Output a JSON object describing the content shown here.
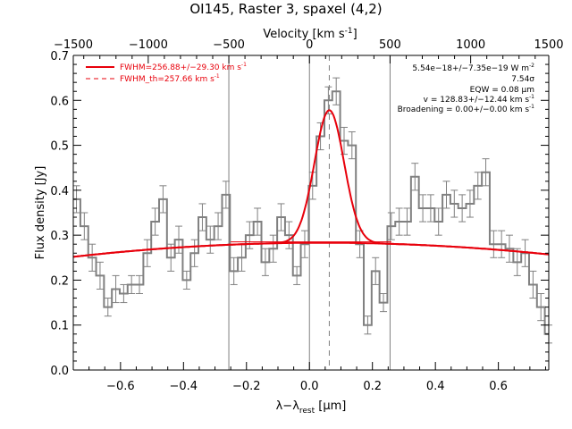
{
  "chart_data": {
    "type": "line",
    "title": "OI145, Raster 3, spaxel (4,2)",
    "xlabel": "λ−λ",
    "xlabel_sub": "rest",
    "xlabel_units": " [μm]",
    "ylabel": "Flux density [Jy]",
    "top_axis_label": "Velocity [km s",
    "top_axis_sup": "-1",
    "top_axis_close": "]",
    "xlim": [
      -0.75,
      0.76
    ],
    "ylim": [
      0.0,
      0.7
    ],
    "x_ticks": [
      -0.6,
      -0.4,
      -0.2,
      0.0,
      0.2,
      0.4,
      0.6
    ],
    "x_tick_labels": [
      "−0.6",
      "−0.4",
      "−0.2",
      "0.0",
      "0.2",
      "0.4",
      "0.6"
    ],
    "y_ticks": [
      0.0,
      0.1,
      0.2,
      0.3,
      0.4,
      0.5,
      0.6,
      0.7
    ],
    "y_tick_labels": [
      "0.0",
      "0.1",
      "0.2",
      "0.3",
      "0.4",
      "0.5",
      "0.6",
      "0.7"
    ],
    "top_ticks_x": [
      -0.512,
      -0.256,
      0.0,
      0.256,
      0.512,
      0.768
    ],
    "top_tick_labels": [
      "−1000",
      "−500",
      "0",
      "500",
      "1000",
      "1500"
    ],
    "top_tick_left_label": "−1500",
    "vertical_lines_x": [
      -0.256,
      0.0,
      0.256
    ],
    "center_dashed_x": 0.063,
    "legend": [
      {
        "label": "FWHM=256.88+/−29.30 km s",
        "sup": "-1",
        "style": "solid"
      },
      {
        "label": "FWHM_th=257.66 km s",
        "sup": "-1",
        "style": "dashed"
      }
    ],
    "annotations": [
      {
        "text": "5.54e−18+/−7.35e−19 W m",
        "sup": "-2"
      },
      {
        "text": "7.54σ",
        "sup": ""
      },
      {
        "text": "EQW = 0.08 μm",
        "sup": ""
      },
      {
        "text": "v = 128.83+/−12.44 km s",
        "sup": "-1"
      },
      {
        "text": "Broadening = 0.00+/−0.00 km s",
        "sup": "-1"
      }
    ],
    "spectrum": {
      "name": "Observed flux",
      "x": [
        -0.74,
        -0.715,
        -0.69,
        -0.665,
        -0.64,
        -0.615,
        -0.59,
        -0.565,
        -0.54,
        -0.515,
        -0.49,
        -0.465,
        -0.44,
        -0.415,
        -0.39,
        -0.365,
        -0.34,
        -0.315,
        -0.29,
        -0.265,
        -0.24,
        -0.215,
        -0.19,
        -0.165,
        -0.14,
        -0.115,
        -0.09,
        -0.065,
        -0.04,
        -0.015,
        0.01,
        0.035,
        0.06,
        0.085,
        0.11,
        0.135,
        0.16,
        0.185,
        0.21,
        0.235,
        0.26,
        0.285,
        0.31,
        0.335,
        0.36,
        0.385,
        0.41,
        0.435,
        0.46,
        0.485,
        0.51,
        0.535,
        0.56,
        0.585,
        0.61,
        0.635,
        0.66,
        0.685,
        0.71,
        0.735,
        0.76
      ],
      "y": [
        0.38,
        0.32,
        0.25,
        0.21,
        0.14,
        0.18,
        0.17,
        0.19,
        0.19,
        0.26,
        0.33,
        0.38,
        0.25,
        0.29,
        0.2,
        0.26,
        0.34,
        0.29,
        0.32,
        0.39,
        0.22,
        0.25,
        0.3,
        0.33,
        0.24,
        0.27,
        0.34,
        0.3,
        0.21,
        0.28,
        0.41,
        0.52,
        0.6,
        0.62,
        0.51,
        0.5,
        0.28,
        0.1,
        0.22,
        0.15,
        0.32,
        0.33,
        0.33,
        0.43,
        0.36,
        0.36,
        0.33,
        0.39,
        0.37,
        0.36,
        0.37,
        0.41,
        0.44,
        0.28,
        0.28,
        0.27,
        0.24,
        0.26,
        0.19,
        0.14,
        0.08
      ],
      "err": [
        0.03,
        0.03,
        0.03,
        0.03,
        0.02,
        0.03,
        0.02,
        0.02,
        0.02,
        0.03,
        0.03,
        0.03,
        0.03,
        0.03,
        0.02,
        0.03,
        0.03,
        0.03,
        0.03,
        0.03,
        0.03,
        0.03,
        0.03,
        0.03,
        0.03,
        0.03,
        0.03,
        0.03,
        0.02,
        0.03,
        0.03,
        0.03,
        0.03,
        0.03,
        0.03,
        0.03,
        0.03,
        0.02,
        0.03,
        0.02,
        0.03,
        0.03,
        0.03,
        0.03,
        0.03,
        0.03,
        0.03,
        0.03,
        0.03,
        0.03,
        0.03,
        0.03,
        0.03,
        0.03,
        0.03,
        0.03,
        0.03,
        0.03,
        0.03,
        0.03,
        0.02
      ]
    },
    "model": {
      "continuum_quadratic": {
        "c0": 0.283,
        "c1": 0.004,
        "c2": -0.05
      },
      "line_center": 0.063,
      "line_amplitude": 0.295,
      "line_sigma": 0.047,
      "flat_baseline": 0.285,
      "flat_baseline_xlim": [
        -0.25,
        0.26
      ]
    }
  },
  "colors": {
    "spectrum": "#808080",
    "model": "#e8000b",
    "reference_lines": "#808080",
    "axes": "#000000"
  }
}
